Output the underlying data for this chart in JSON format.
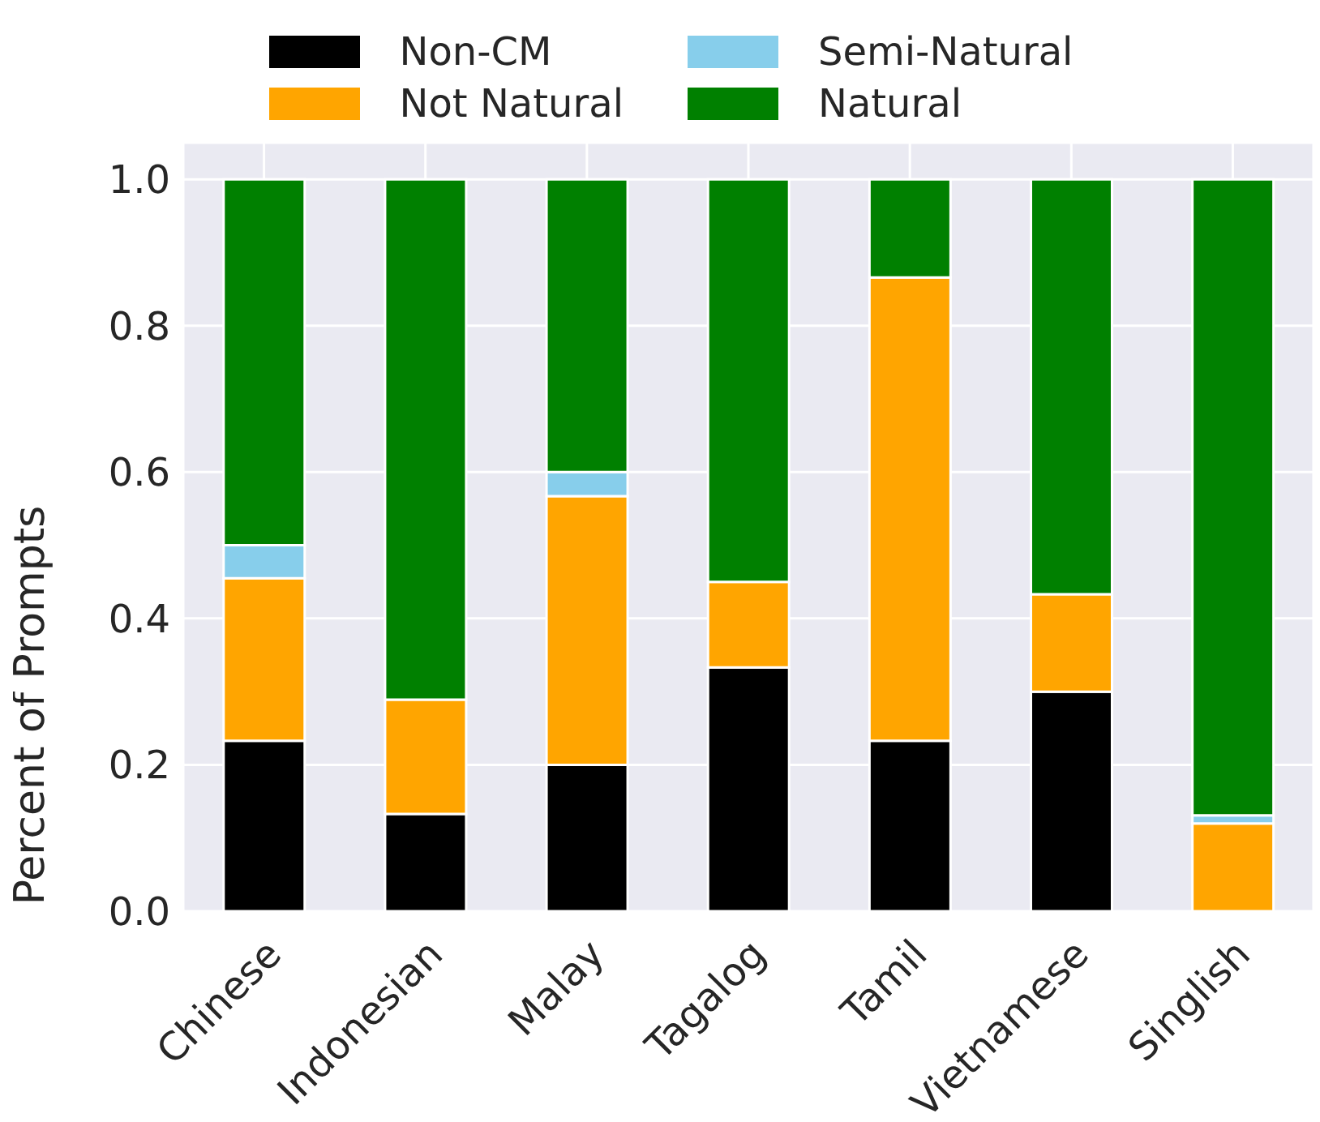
{
  "chart_data": {
    "type": "bar",
    "stacked": true,
    "ylabel": "Percent of Prompts",
    "categories": [
      "Chinese",
      "Indonesian",
      "Malay",
      "Tagalog",
      "Tamil",
      "Vietnamese",
      "Singlish"
    ],
    "series": [
      {
        "name": "Non-CM",
        "color": "#000000",
        "values": [
          0.233,
          0.133,
          0.2,
          0.333,
          0.233,
          0.3,
          0
        ]
      },
      {
        "name": "Not Natural",
        "color": "#ffa500",
        "values": [
          0.222,
          0.156,
          0.367,
          0.117,
          0.633,
          0.133,
          0.12
        ]
      },
      {
        "name": "Semi-Natural",
        "color": "#87ceeb",
        "values": [
          0.045,
          0,
          0.033,
          0,
          0,
          0,
          0.011
        ]
      },
      {
        "name": "Natural",
        "color": "#008000",
        "values": [
          0.5,
          0.711,
          0.4,
          0.55,
          0.134,
          0.567,
          0.869
        ]
      }
    ],
    "ylim": [
      0,
      1.05
    ],
    "yticks": [
      {
        "value": 0,
        "label": "0.0"
      },
      0.2,
      0.4,
      0.6,
      0.8,
      {
        "value": 1,
        "label": "1.0"
      }
    ],
    "grid": true,
    "legend": "top"
  }
}
